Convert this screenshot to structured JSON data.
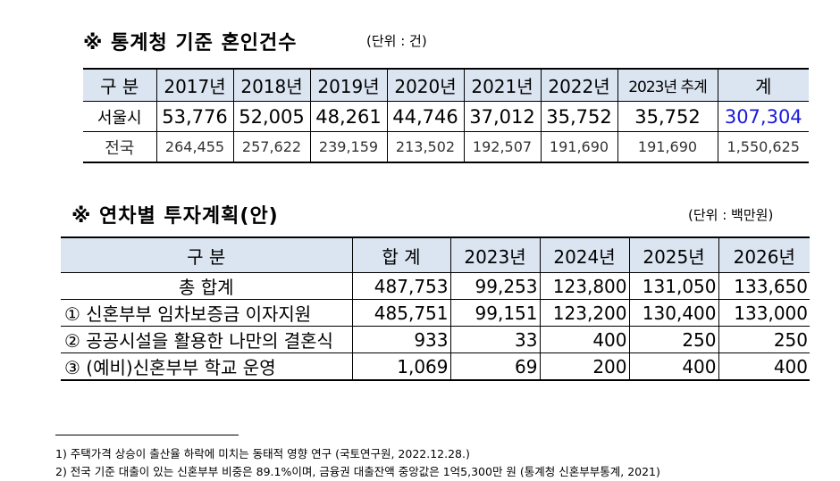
{
  "section1": {
    "title": "※ 통계청 기준 혼인건수",
    "unit": "(단위 : 건)",
    "headers": [
      "구 분",
      "2017년",
      "2018년",
      "2019년",
      "2020년",
      "2021년",
      "2022년",
      "2023년 추계",
      "계"
    ],
    "rows": [
      [
        "서울시",
        "53,776",
        "52,005",
        "48,261",
        "44,746",
        "37,012",
        "35,752",
        "35,752",
        "307,304"
      ],
      [
        "전국",
        "264,455",
        "257,622",
        "239,159",
        "213,502",
        "192,507",
        "191,690",
        "191,690",
        "1,550,625"
      ]
    ],
    "highlight_color": "#1a1adc"
  },
  "section2": {
    "title": "※ 연차별 투자계획(안)",
    "unit": "(단위 : 백만원)",
    "headers": [
      "구 분",
      "합 계",
      "2023년",
      "2024년",
      "2025년",
      "2026년"
    ],
    "rows": [
      [
        "총 합계",
        "487,753",
        "99,253",
        "123,800",
        "131,050",
        "133,650"
      ],
      [
        "① 신혼부부 임차보증금 이자지원",
        "485,751",
        "99,151",
        "123,200",
        "130,400",
        "133,000"
      ],
      [
        "② 공공시설을 활용한 나만의 결혼식",
        "933",
        "33",
        "400",
        "250",
        "250"
      ],
      [
        "③ (예비)신혼부부 학교 운영",
        "1,069",
        "69",
        "200",
        "400",
        "400"
      ]
    ]
  },
  "footnotes": [
    "1) 주택가격 상승이 출산율 하락에 미치는 동태적 영향 연구 (국토연구원, 2022.12.28.)",
    "2) 전국 기준 대출이 있는 신혼부부 비중은 89.1%이며, 금융권 대출잔액 중앙값은 1억5,300만 원 (통계청 신혼부부통계, 2021)"
  ]
}
